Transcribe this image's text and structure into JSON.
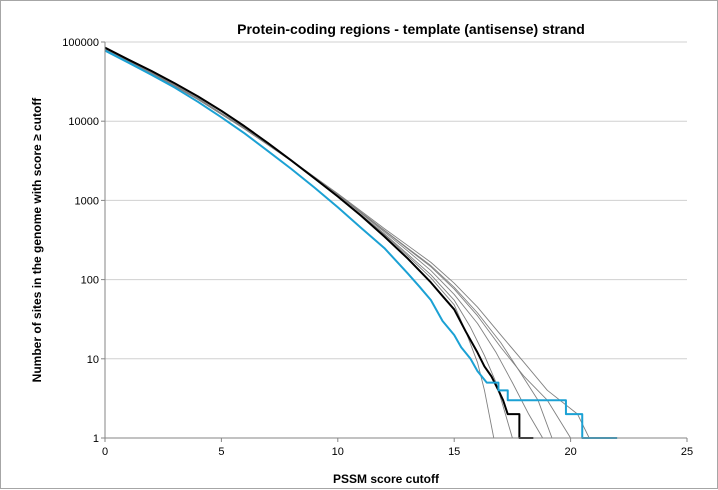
{
  "chart_data": {
    "type": "line",
    "title": "Protein-coding regions - template (antisense) strand",
    "xlabel": "PSSM score cutoff",
    "ylabel": "Number of sites in the genome with score ≥ cutoff",
    "xlim": [
      0,
      25
    ],
    "ylim": [
      1,
      100000
    ],
    "yscale": "log",
    "grid": "horizontal",
    "legend": "none",
    "x_ticks": [
      "0",
      "5",
      "10",
      "15",
      "20",
      "25"
    ],
    "y_ticks": [
      "1",
      "10",
      "100",
      "1000",
      "10000",
      "100000"
    ],
    "series": [
      {
        "color": "#808080",
        "width": 0.9,
        "points": [
          [
            0,
            84000
          ],
          [
            2,
            42000
          ],
          [
            4,
            19500
          ],
          [
            6,
            8200
          ],
          [
            8,
            3200
          ],
          [
            10,
            1150
          ],
          [
            12,
            370
          ],
          [
            13,
            200
          ],
          [
            14,
            105
          ],
          [
            15,
            48
          ],
          [
            15.5,
            22
          ],
          [
            16,
            9
          ],
          [
            16.3,
            4
          ],
          [
            16.5,
            2
          ],
          [
            16.7,
            1
          ]
        ]
      },
      {
        "color": "#808080",
        "width": 0.9,
        "points": [
          [
            0,
            83000
          ],
          [
            2,
            41500
          ],
          [
            4,
            19200
          ],
          [
            6,
            8100
          ],
          [
            8,
            3150
          ],
          [
            10,
            1140
          ],
          [
            12,
            380
          ],
          [
            13,
            210
          ],
          [
            14,
            115
          ],
          [
            15,
            55
          ],
          [
            15.7,
            25
          ],
          [
            16.3,
            11
          ],
          [
            16.8,
            5
          ],
          [
            17.2,
            2
          ],
          [
            17.5,
            1
          ]
        ]
      },
      {
        "color": "#808080",
        "width": 0.9,
        "points": [
          [
            0,
            82000
          ],
          [
            2,
            41000
          ],
          [
            4,
            19000
          ],
          [
            6,
            8050
          ],
          [
            8,
            3180
          ],
          [
            10,
            1180
          ],
          [
            12,
            400
          ],
          [
            13,
            230
          ],
          [
            14,
            130
          ],
          [
            15,
            65
          ],
          [
            16,
            28
          ],
          [
            16.8,
            12
          ],
          [
            17.5,
            5
          ],
          [
            18.2,
            2
          ],
          [
            18.8,
            1
          ]
        ]
      },
      {
        "color": "#808080",
        "width": 0.9,
        "points": [
          [
            0,
            81000
          ],
          [
            2,
            40500
          ],
          [
            4,
            18800
          ],
          [
            6,
            8000
          ],
          [
            8,
            3200
          ],
          [
            10,
            1200
          ],
          [
            12,
            420
          ],
          [
            13,
            250
          ],
          [
            14,
            150
          ],
          [
            15,
            80
          ],
          [
            16,
            38
          ],
          [
            17,
            16
          ],
          [
            17.8,
            7
          ],
          [
            18.6,
            3
          ],
          [
            19.2,
            1
          ]
        ]
      },
      {
        "color": "#808080",
        "width": 0.9,
        "points": [
          [
            0,
            80500
          ],
          [
            2,
            40200
          ],
          [
            4,
            18700
          ],
          [
            6,
            7950
          ],
          [
            8,
            3150
          ],
          [
            10,
            1180
          ],
          [
            12,
            415
          ],
          [
            13,
            245
          ],
          [
            14,
            145
          ],
          [
            15,
            76
          ],
          [
            16,
            35
          ],
          [
            17,
            14
          ],
          [
            18,
            6
          ],
          [
            19,
            3
          ],
          [
            20,
            1
          ]
        ]
      },
      {
        "color": "#808080",
        "width": 0.9,
        "points": [
          [
            0,
            82500
          ],
          [
            2,
            41200
          ],
          [
            4,
            19100
          ],
          [
            6,
            8100
          ],
          [
            8,
            3220
          ],
          [
            10,
            1220
          ],
          [
            12,
            440
          ],
          [
            13,
            270
          ],
          [
            14,
            165
          ],
          [
            15,
            90
          ],
          [
            16,
            45
          ],
          [
            17,
            20
          ],
          [
            18,
            9
          ],
          [
            19,
            4
          ],
          [
            20.3,
            2
          ],
          [
            20.8,
            1
          ]
        ]
      },
      {
        "color": "#000000",
        "width": 2.0,
        "points": [
          [
            0,
            85000
          ],
          [
            1,
            60000
          ],
          [
            2,
            43000
          ],
          [
            3,
            30000
          ],
          [
            4,
            20500
          ],
          [
            5,
            13500
          ],
          [
            6,
            8600
          ],
          [
            7,
            5300
          ],
          [
            8,
            3200
          ],
          [
            9,
            1900
          ],
          [
            10,
            1120
          ],
          [
            11,
            640
          ],
          [
            12,
            350
          ],
          [
            13,
            185
          ],
          [
            14,
            92
          ],
          [
            14.5,
            62
          ],
          [
            15,
            42
          ],
          [
            15.5,
            22
          ],
          [
            16,
            12
          ],
          [
            16.3,
            8
          ],
          [
            16.6,
            6
          ],
          [
            16.9,
            4
          ],
          [
            17.1,
            3
          ],
          [
            17.3,
            2
          ],
          [
            17.8,
            2
          ],
          [
            17.8,
            1
          ],
          [
            18.4,
            1
          ]
        ]
      },
      {
        "color": "#1ba1d4",
        "width": 2.0,
        "points": [
          [
            0,
            78000
          ],
          [
            1,
            55000
          ],
          [
            2,
            38500
          ],
          [
            3,
            26500
          ],
          [
            4,
            17500
          ],
          [
            5,
            11200
          ],
          [
            6,
            7000
          ],
          [
            7,
            4200
          ],
          [
            8,
            2500
          ],
          [
            9,
            1450
          ],
          [
            10,
            820
          ],
          [
            11,
            450
          ],
          [
            12,
            250
          ],
          [
            13,
            120
          ],
          [
            13.5,
            82
          ],
          [
            14,
            55
          ],
          [
            14.5,
            30
          ],
          [
            15,
            20
          ],
          [
            15.3,
            14
          ],
          [
            15.7,
            10
          ],
          [
            16,
            7
          ],
          [
            16.4,
            5
          ],
          [
            16.9,
            5
          ],
          [
            16.9,
            4
          ],
          [
            17.3,
            4
          ],
          [
            17.3,
            3
          ],
          [
            19.8,
            3
          ],
          [
            19.8,
            2
          ],
          [
            20.5,
            2
          ],
          [
            20.5,
            1
          ],
          [
            22,
            1
          ]
        ]
      }
    ]
  }
}
